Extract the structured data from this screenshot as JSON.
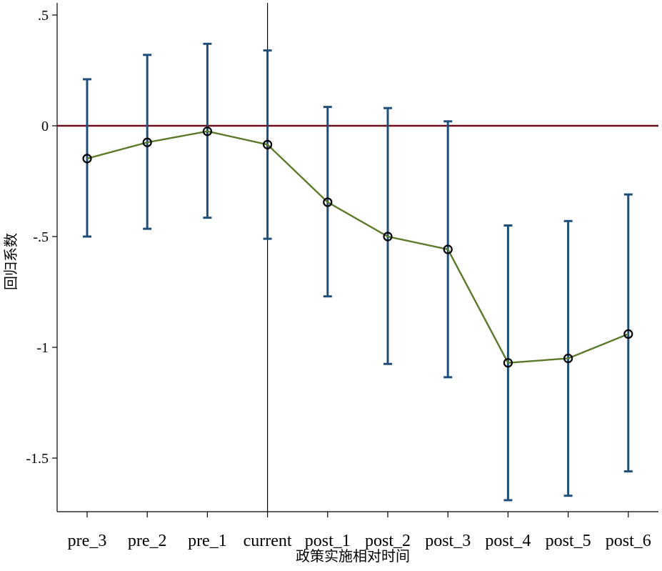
{
  "chart_data": {
    "type": "line",
    "title": "",
    "xlabel": "政策实施相对时间",
    "ylabel": "回归系数",
    "categories": [
      "pre_3",
      "pre_2",
      "pre_1",
      "current",
      "post_1",
      "post_2",
      "post_3",
      "post_4",
      "post_5",
      "post_6"
    ],
    "series": [
      {
        "values": [
          -0.148,
          -0.075,
          -0.025,
          -0.085,
          -0.345,
          -0.5,
          -0.558,
          -1.07,
          -1.05,
          -0.94
        ],
        "ci_upper": [
          0.21,
          0.32,
          0.37,
          0.34,
          0.085,
          0.08,
          0.02,
          -0.45,
          -0.43,
          -0.31
        ],
        "ci_lower": [
          -0.5,
          -0.465,
          -0.415,
          -0.51,
          -0.77,
          -1.075,
          -1.135,
          -1.69,
          -1.67,
          -1.56
        ]
      }
    ],
    "ylim": [
      -1.75,
      0.55
    ],
    "yticks": [
      ".5",
      "0",
      "-.5",
      "-1",
      "-1.5"
    ],
    "ytick_values": [
      0.5,
      0,
      -0.5,
      -1,
      -1.5
    ],
    "reference_hline": 0,
    "reference_vline_category": "current",
    "grid": false,
    "legend": "none",
    "colors": {
      "line": "#5a7a2a",
      "ci": "#1f4e79",
      "marker": "#000000",
      "hline": "#6b0f1a",
      "vline": "#000000",
      "axis": "#000000"
    }
  }
}
